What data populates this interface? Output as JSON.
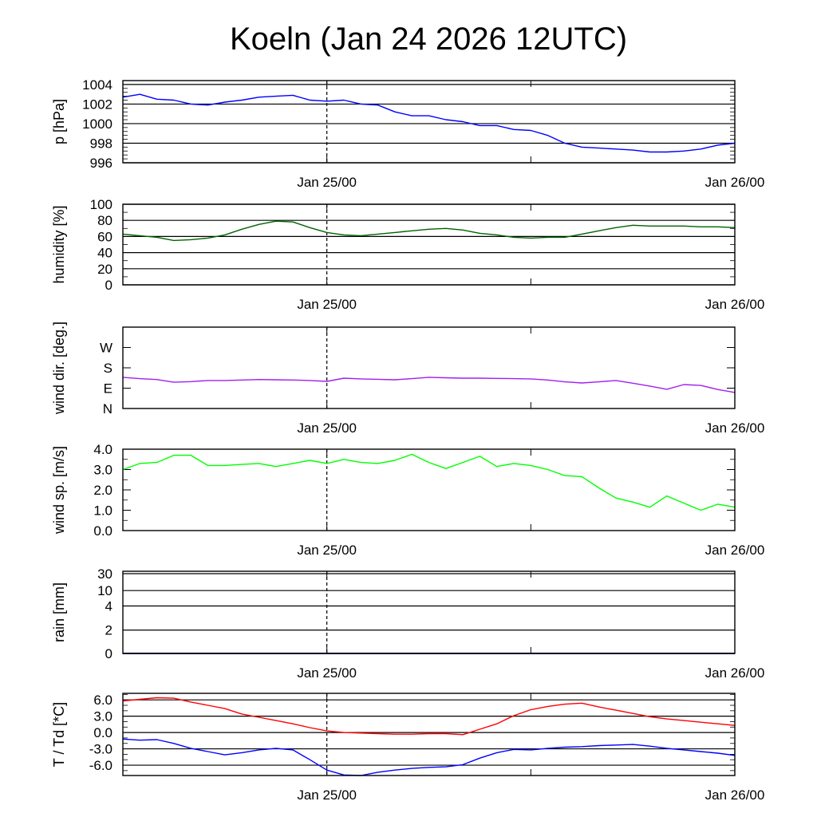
{
  "chart_data": {
    "type": "line",
    "title": "Koeln (Jan 24 2026 12UTC)",
    "x_unit": "hours since Jan 24 2026 12UTC",
    "x": [
      0,
      1,
      2,
      3,
      4,
      5,
      6,
      7,
      8,
      9,
      10,
      11,
      12,
      13,
      14,
      15,
      16,
      17,
      18,
      19,
      20,
      21,
      22,
      23,
      24,
      25,
      26,
      27,
      28,
      29,
      30,
      31,
      32,
      33,
      34,
      35,
      36
    ],
    "xlim": [
      0,
      36
    ],
    "x_ticks": [
      {
        "value": 12,
        "label": "Jan 25/00"
      },
      {
        "value": 24,
        "label": ""
      },
      {
        "value": 36,
        "label": "Jan 26/00"
      }
    ],
    "now_marker": 12,
    "panels": [
      {
        "ylabel": "p [hPa]",
        "ylim": [
          996,
          1004.4
        ],
        "grid": true,
        "minor_step": 0.4,
        "ticks": [
          {
            "value": 996,
            "label": "996"
          },
          {
            "value": 998,
            "label": "998"
          },
          {
            "value": 1000,
            "label": "1000"
          },
          {
            "value": 1002,
            "label": "1002"
          },
          {
            "value": 1004,
            "label": "1004"
          }
        ],
        "series": [
          {
            "name": "pressure",
            "color": "#0000ff",
            "values": [
              1002.7,
              1003.0,
              1002.5,
              1002.4,
              1002.0,
              1001.9,
              1002.2,
              1002.4,
              1002.7,
              1002.8,
              1002.9,
              1002.4,
              1002.3,
              1002.4,
              1002.0,
              1001.9,
              1001.2,
              1000.8,
              1000.8,
              1000.4,
              1000.2,
              999.8,
              999.8,
              999.4,
              999.3,
              998.8,
              998.0,
              997.6,
              997.5,
              997.4,
              997.3,
              997.1,
              997.1,
              997.2,
              997.4,
              997.8,
              998.0
            ]
          }
        ]
      },
      {
        "ylabel": "humidity [%]",
        "ylim": [
          0,
          100
        ],
        "grid": true,
        "minor_step": 10,
        "ticks": [
          {
            "value": 0,
            "label": "0"
          },
          {
            "value": 20,
            "label": "20"
          },
          {
            "value": 40,
            "label": "40"
          },
          {
            "value": 60,
            "label": "60"
          },
          {
            "value": 80,
            "label": "80"
          },
          {
            "value": 100,
            "label": "100"
          }
        ],
        "series": [
          {
            "name": "humidity",
            "color": "#006400",
            "values": [
              63,
              61,
              59,
              55,
              56,
              58,
              62,
              69,
              75,
              79,
              78,
              71,
              65,
              62,
              61,
              63,
              65,
              67,
              69,
              70,
              68,
              64,
              62,
              59,
              58,
              59,
              59,
              63,
              67,
              71,
              74,
              73,
              73,
              73,
              72,
              72,
              71
            ]
          }
        ]
      },
      {
        "ylabel": "wind dir. [deg.]",
        "ylim": [
          0,
          360
        ],
        "grid": false,
        "minor_step": 0,
        "ticks": [
          {
            "value": 0,
            "label": "N"
          },
          {
            "value": 90,
            "label": "E"
          },
          {
            "value": 180,
            "label": "S"
          },
          {
            "value": 270,
            "label": "W"
          }
        ],
        "series": [
          {
            "name": "wind direction",
            "color": "#a020f0",
            "values": [
              138,
              132,
              128,
              116,
              119,
              124,
              124,
              126,
              128,
              127,
              126,
              124,
              120,
              134,
              131,
              129,
              127,
              132,
              138,
              136,
              134,
              134,
              133,
              132,
              131,
              126,
              118,
              113,
              118,
              124,
              112,
              99,
              85,
              106,
              102,
              84,
              71
            ]
          }
        ]
      },
      {
        "ylabel": "wind sp. [m/s]",
        "ylim": [
          0,
          4
        ],
        "grid": false,
        "minor_step": 0.5,
        "ticks": [
          {
            "value": 0,
            "label": "0.0"
          },
          {
            "value": 1,
            "label": "1.0"
          },
          {
            "value": 2,
            "label": "2.0"
          },
          {
            "value": 3,
            "label": "3.0"
          },
          {
            "value": 4,
            "label": "4.0"
          }
        ],
        "series": [
          {
            "name": "wind speed",
            "color": "#00ff00",
            "values": [
              3.0,
              3.3,
              3.35,
              3.7,
              3.7,
              3.2,
              3.2,
              3.25,
              3.3,
              3.15,
              3.3,
              3.45,
              3.3,
              3.5,
              3.35,
              3.3,
              3.45,
              3.75,
              3.35,
              3.05,
              3.35,
              3.65,
              3.15,
              3.3,
              3.2,
              3.0,
              2.7,
              2.65,
              2.1,
              1.6,
              1.4,
              1.15,
              1.7,
              1.35,
              1.0,
              1.3,
              1.15
            ]
          }
        ]
      },
      {
        "ylabel": "rain [mm]",
        "ylim": [
          0,
          35
        ],
        "grid": true,
        "minor_step": 0,
        "scale": "nonlinear",
        "ticks": [
          {
            "value": 0,
            "label": "0"
          },
          {
            "value": 2,
            "label": "2"
          },
          {
            "value": 4,
            "label": "4"
          },
          {
            "value": 10,
            "label": "10"
          },
          {
            "value": 30,
            "label": "30"
          }
        ],
        "series": [
          {
            "name": "rain",
            "color": "#000080",
            "values": [
              0,
              0,
              0,
              0,
              0,
              0,
              0,
              0,
              0,
              0,
              0,
              0,
              0,
              0,
              0,
              0,
              0,
              0,
              0,
              0,
              0,
              0,
              0,
              0,
              0,
              0,
              0,
              0,
              0,
              0,
              0,
              0,
              0,
              0,
              0,
              0,
              0
            ]
          }
        ]
      },
      {
        "ylabel": "T / Td [*C]",
        "ylim": [
          -7.9,
          7.2
        ],
        "grid": true,
        "minor_step": 1.0,
        "ticks": [
          {
            "value": -6,
            "label": "-6.0"
          },
          {
            "value": -3,
            "label": "-3.0"
          },
          {
            "value": 0,
            "label": "0.0"
          },
          {
            "value": 3,
            "label": "3.0"
          },
          {
            "value": 6,
            "label": "6.0"
          }
        ],
        "series": [
          {
            "name": "temperature",
            "color": "#ff0000",
            "values": [
              5.8,
              6.1,
              6.4,
              6.3,
              5.6,
              5.0,
              4.4,
              3.4,
              2.8,
              2.2,
              1.6,
              0.9,
              0.3,
              0.0,
              -0.1,
              -0.2,
              -0.3,
              -0.3,
              -0.2,
              -0.2,
              -0.4,
              0.6,
              1.6,
              3.1,
              4.2,
              4.8,
              5.2,
              5.4,
              4.7,
              4.1,
              3.5,
              2.9,
              2.5,
              2.2,
              1.9,
              1.6,
              1.3
            ]
          },
          {
            "name": "dewpoint",
            "color": "#0000ff",
            "values": [
              -1.2,
              -1.4,
              -1.3,
              -2.0,
              -2.9,
              -3.5,
              -4.1,
              -3.7,
              -3.2,
              -2.9,
              -3.2,
              -5.0,
              -6.9,
              -7.8,
              -7.9,
              -7.3,
              -6.9,
              -6.6,
              -6.4,
              -6.3,
              -5.9,
              -4.7,
              -3.7,
              -3.1,
              -3.2,
              -2.9,
              -2.7,
              -2.6,
              -2.4,
              -2.3,
              -2.2,
              -2.5,
              -2.9,
              -3.2,
              -3.5,
              -3.8,
              -4.2
            ]
          }
        ]
      }
    ]
  }
}
